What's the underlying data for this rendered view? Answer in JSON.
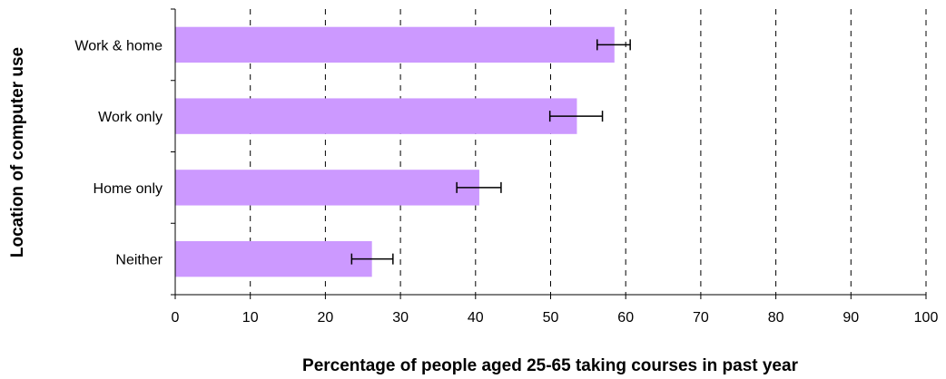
{
  "chart_data": {
    "type": "bar",
    "orientation": "horizontal",
    "categories": [
      "Work & home",
      "Work only",
      "Home only",
      "Neither"
    ],
    "values": [
      58.5,
      53.5,
      40.5,
      26.2
    ],
    "error_low": [
      56.2,
      49.9,
      37.5,
      23.5
    ],
    "error_high": [
      60.6,
      56.9,
      43.4,
      29.0
    ],
    "xlabel": "Percentage of people aged 25-65 taking courses in past year",
    "ylabel": "Location of computer use",
    "xlim": [
      0,
      100
    ],
    "xticks": [
      "0",
      "10",
      "20",
      "30",
      "40",
      "50",
      "60",
      "70",
      "80",
      "90",
      "100"
    ],
    "grid": "vertical dashed",
    "bar_color": "#cc99ff"
  }
}
